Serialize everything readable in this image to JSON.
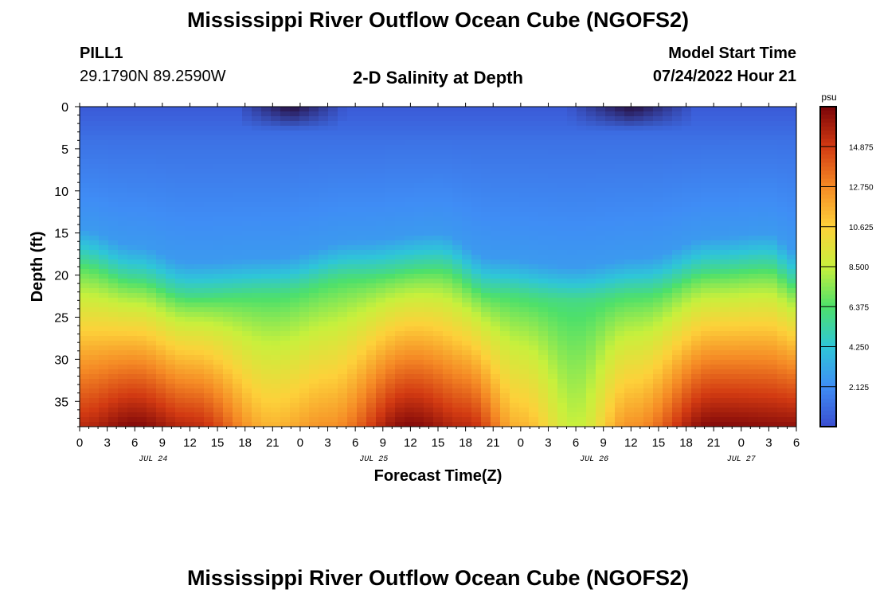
{
  "header": {
    "title": "Mississippi River Outflow Ocean Cube (NGOFS2)",
    "station": "PILL1",
    "coords": "29.1790N  89.2590W",
    "subtitle": "2-D Salinity at Depth",
    "model_start_label": "Model Start Time",
    "model_start_value": "07/24/2022 Hour 21"
  },
  "footer": {
    "title": "Mississippi River Outflow Ocean Cube (NGOFS2)"
  },
  "colors": {
    "colormap": [
      "#3a4ed0",
      "#3f8df5",
      "#2ec6d8",
      "#4ee06a",
      "#c8f03c",
      "#fdd13a",
      "#f58a25",
      "#d23a12",
      "#7a0408"
    ],
    "surface_low": "#2a1a55"
  },
  "chart_data": {
    "type": "heatmap",
    "xlabel": "Forecast Time(Z)",
    "ylabel": "Depth (ft)",
    "colorbar_unit": "psu",
    "colorbar_ticks": [
      "2.125",
      "4.250",
      "6.375",
      "8.500",
      "10.625",
      "12.750",
      "14.875"
    ],
    "colorbar_range": [
      0,
      17
    ],
    "x_tick_labels": [
      "0",
      "3",
      "6",
      "9",
      "12",
      "15",
      "18",
      "21",
      "0",
      "3",
      "6",
      "9",
      "12",
      "15",
      "18",
      "21",
      "0",
      "3",
      "6",
      "9",
      "12",
      "15",
      "18",
      "21",
      "0",
      "3",
      "6"
    ],
    "x_range_hours": [
      0,
      78
    ],
    "date_labels": [
      {
        "label": "JUL 24",
        "hour": 8
      },
      {
        "label": "JUL 25",
        "hour": 32
      },
      {
        "label": "JUL 26",
        "hour": 56
      },
      {
        "label": "JUL 27",
        "hour": 72
      }
    ],
    "y_tick_labels": [
      "0",
      "5",
      "10",
      "15",
      "20",
      "25",
      "30",
      "35"
    ],
    "y_range_ft": [
      0,
      38
    ],
    "halocline_depth_ft": [
      {
        "hour": 0,
        "depth": 18.5
      },
      {
        "hour": 6,
        "depth": 20.5
      },
      {
        "hour": 12,
        "depth": 22.5
      },
      {
        "hour": 21,
        "depth": 22
      },
      {
        "hour": 30,
        "depth": 20
      },
      {
        "hour": 39,
        "depth": 19
      },
      {
        "hour": 45,
        "depth": 22
      },
      {
        "hour": 54,
        "depth": 23
      },
      {
        "hour": 61,
        "depth": 22
      },
      {
        "hour": 69,
        "depth": 19.5
      },
      {
        "hour": 75,
        "depth": 19
      },
      {
        "hour": 78,
        "depth": 21
      }
    ],
    "bottom_salinity_psu": [
      {
        "hour": 0,
        "value": 15.5
      },
      {
        "hour": 6,
        "value": 16.8
      },
      {
        "hour": 12,
        "value": 15.5
      },
      {
        "hour": 21,
        "value": 11.5
      },
      {
        "hour": 27,
        "value": 12.5
      },
      {
        "hour": 36,
        "value": 16.8
      },
      {
        "hour": 42,
        "value": 15.5
      },
      {
        "hour": 48,
        "value": 11.5
      },
      {
        "hour": 54,
        "value": 8.5
      },
      {
        "hour": 60,
        "value": 12.5
      },
      {
        "hour": 69,
        "value": 16.8
      },
      {
        "hour": 78,
        "value": 16.5
      }
    ],
    "surface_freshwater_events": [
      {
        "start_hour": 18,
        "end_hour": 29,
        "peak_hour": 23
      },
      {
        "start_hour": 53,
        "end_hour": 67,
        "peak_hour": 60
      }
    ]
  }
}
